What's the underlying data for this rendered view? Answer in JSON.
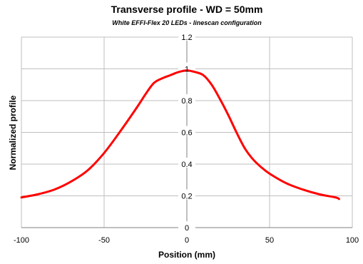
{
  "chart_data": {
    "type": "line",
    "title": "Transverse profile - WD = 50mm",
    "subtitle": "White EFFI-Flex 20 LEDs - linescan configuration",
    "xlabel": "Position (mm)",
    "ylabel": "Normalized profile",
    "xlim": [
      -100,
      100
    ],
    "ylim": [
      0,
      1.2
    ],
    "x_ticks": [
      "-100",
      "-50",
      "0",
      "50",
      "100"
    ],
    "y_ticks": [
      "0",
      "0.2",
      "0.4",
      "0.6",
      "0.8",
      "1",
      "1.2"
    ],
    "x_tick_values": [
      -100,
      -50,
      0,
      50,
      100
    ],
    "y_tick_values": [
      0,
      0.2,
      0.4,
      0.6,
      0.8,
      1.0,
      1.2
    ],
    "grid": true,
    "series": [
      {
        "color": "#ff0000",
        "x": [
          -100,
          -90,
          -80,
          -70,
          -60,
          -50,
          -40,
          -30,
          -25,
          -20,
          -15,
          -10,
          -5,
          0,
          5,
          10,
          15,
          20,
          25,
          30,
          35,
          40,
          45,
          50,
          60,
          70,
          80,
          90,
          92
        ],
        "y": [
          0.19,
          0.21,
          0.24,
          0.29,
          0.36,
          0.47,
          0.61,
          0.76,
          0.84,
          0.91,
          0.94,
          0.96,
          0.98,
          0.99,
          0.98,
          0.96,
          0.9,
          0.81,
          0.71,
          0.6,
          0.5,
          0.43,
          0.38,
          0.34,
          0.28,
          0.24,
          0.21,
          0.19,
          0.18
        ]
      }
    ]
  }
}
